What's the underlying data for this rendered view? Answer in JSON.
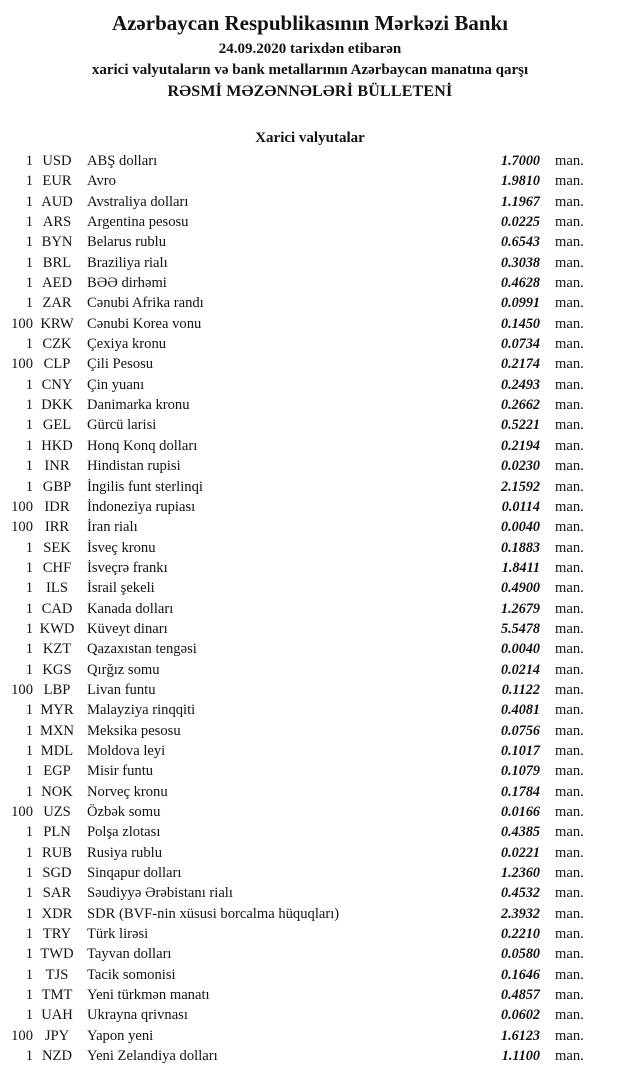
{
  "header": {
    "bank_name": "Azərbaycan Respublikasının Mərkəzi Bankı",
    "date_line": "24.09.2020 tarixdən etibarən",
    "subtitle": "xarici valyutaların və bank metallarının Azərbaycan manatına qarşı",
    "bulletin_title": "RƏSMİ MƏZƏNNƏLƏRİ BÜLLETENİ"
  },
  "section": {
    "title": "Xarici valyutalar"
  },
  "unit_label": "man.",
  "colors": {
    "text": "#121212",
    "background": "#ffffff"
  },
  "rates": [
    {
      "qty": "1",
      "code": "USD",
      "name": "ABŞ dolları",
      "rate": "1.7000"
    },
    {
      "qty": "1",
      "code": "EUR",
      "name": "Avro",
      "rate": "1.9810"
    },
    {
      "qty": "1",
      "code": "AUD",
      "name": "Avstraliya dolları",
      "rate": "1.1967"
    },
    {
      "qty": "1",
      "code": "ARS",
      "name": "Argentina pesosu",
      "rate": "0.0225"
    },
    {
      "qty": "1",
      "code": "BYN",
      "name": "Belarus rublu",
      "rate": "0.6543"
    },
    {
      "qty": "1",
      "code": "BRL",
      "name": "Braziliya rialı",
      "rate": "0.3038"
    },
    {
      "qty": "1",
      "code": "AED",
      "name": "BƏƏ dirhəmi",
      "rate": "0.4628"
    },
    {
      "qty": "1",
      "code": "ZAR",
      "name": "Cənubi Afrika randı",
      "rate": "0.0991"
    },
    {
      "qty": "100",
      "code": "KRW",
      "name": "Cənubi Korea vonu",
      "rate": "0.1450"
    },
    {
      "qty": "1",
      "code": "CZK",
      "name": "Çexiya kronu",
      "rate": "0.0734"
    },
    {
      "qty": "100",
      "code": "CLP",
      "name": "Çili Pesosu",
      "rate": "0.2174"
    },
    {
      "qty": "1",
      "code": "CNY",
      "name": "Çin yuanı",
      "rate": "0.2493"
    },
    {
      "qty": "1",
      "code": "DKK",
      "name": "Danimarka kronu",
      "rate": "0.2662"
    },
    {
      "qty": "1",
      "code": "GEL",
      "name": "Gürcü larisi",
      "rate": "0.5221"
    },
    {
      "qty": "1",
      "code": "HKD",
      "name": "Honq Konq dolları",
      "rate": "0.2194"
    },
    {
      "qty": "1",
      "code": "INR",
      "name": "Hindistan rupisi",
      "rate": "0.0230"
    },
    {
      "qty": "1",
      "code": "GBP",
      "name": "İngilis funt sterlinqi",
      "rate": "2.1592"
    },
    {
      "qty": "100",
      "code": "IDR",
      "name": "İndoneziya rupiası",
      "rate": "0.0114"
    },
    {
      "qty": "100",
      "code": "IRR",
      "name": "İran rialı",
      "rate": "0.0040"
    },
    {
      "qty": "1",
      "code": "SEK",
      "name": "İsveç kronu",
      "rate": "0.1883"
    },
    {
      "qty": "1",
      "code": "CHF",
      "name": "İsveçrə frankı",
      "rate": "1.8411"
    },
    {
      "qty": "1",
      "code": "ILS",
      "name": "İsrail şekeli",
      "rate": "0.4900"
    },
    {
      "qty": "1",
      "code": "CAD",
      "name": "Kanada dolları",
      "rate": "1.2679"
    },
    {
      "qty": "1",
      "code": "KWD",
      "name": "Küveyt dinarı",
      "rate": "5.5478"
    },
    {
      "qty": "1",
      "code": "KZT",
      "name": "Qazaxıstan tengəsi",
      "rate": "0.0040"
    },
    {
      "qty": "1",
      "code": "KGS",
      "name": "Qırğız somu",
      "rate": "0.0214"
    },
    {
      "qty": "100",
      "code": "LBP",
      "name": "Livan funtu",
      "rate": "0.1122"
    },
    {
      "qty": "1",
      "code": "MYR",
      "name": "Malayziya rinqqiti",
      "rate": "0.4081"
    },
    {
      "qty": "1",
      "code": "MXN",
      "name": "Meksika pesosu",
      "rate": "0.0756"
    },
    {
      "qty": "1",
      "code": "MDL",
      "name": "Moldova leyi",
      "rate": "0.1017"
    },
    {
      "qty": "1",
      "code": "EGP",
      "name": "Misir funtu",
      "rate": "0.1079"
    },
    {
      "qty": "1",
      "code": "NOK",
      "name": "Norveç kronu",
      "rate": "0.1784"
    },
    {
      "qty": "100",
      "code": "UZS",
      "name": "Özbək somu",
      "rate": "0.0166"
    },
    {
      "qty": "1",
      "code": "PLN",
      "name": "Polşa zlotası",
      "rate": "0.4385"
    },
    {
      "qty": "1",
      "code": "RUB",
      "name": "Rusiya rublu",
      "rate": "0.0221"
    },
    {
      "qty": "1",
      "code": "SGD",
      "name": "Sinqapur dolları",
      "rate": "1.2360"
    },
    {
      "qty": "1",
      "code": "SAR",
      "name": "Səudiyyə Ərəbistanı rialı",
      "rate": "0.4532"
    },
    {
      "qty": "1",
      "code": "XDR",
      "name": "SDR (BVF-nin xüsusi borcalma hüquqları)",
      "rate": "2.3932"
    },
    {
      "qty": "1",
      "code": "TRY",
      "name": "Türk lirəsi",
      "rate": "0.2210"
    },
    {
      "qty": "1",
      "code": "TWD",
      "name": "Tayvan dolları",
      "rate": "0.0580"
    },
    {
      "qty": "1",
      "code": "TJS",
      "name": "Tacik somonisi",
      "rate": "0.1646"
    },
    {
      "qty": "1",
      "code": "TMT",
      "name": "Yeni türkmən manatı",
      "rate": "0.4857"
    },
    {
      "qty": "1",
      "code": "UAH",
      "name": "Ukrayna qrivnası",
      "rate": "0.0602"
    },
    {
      "qty": "100",
      "code": "JPY",
      "name": "Yapon yeni",
      "rate": "1.6123"
    },
    {
      "qty": "1",
      "code": "NZD",
      "name": "Yeni Zelandiya dolları",
      "rate": "1.1100"
    }
  ]
}
